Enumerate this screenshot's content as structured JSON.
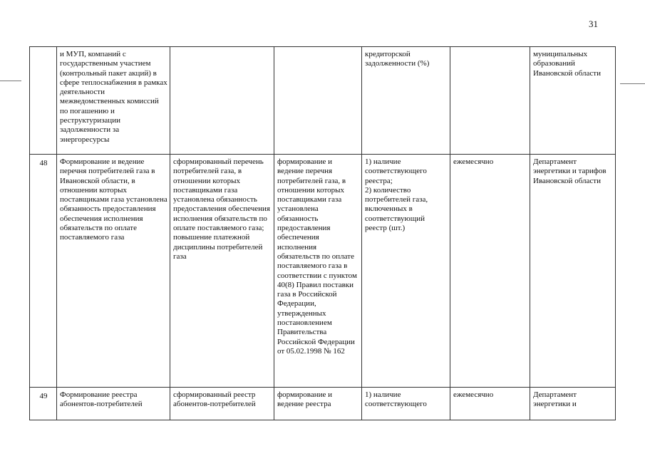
{
  "page_number": "31",
  "rows": [
    {
      "num": "",
      "name": "и МУП, компаний с государственным участием (контрольный пакет акций) в сфере теплоснабжения в рамках деятельности межведомственных комиссий по погашению и реструктуризации задолженности за энергоресурсы",
      "result": "",
      "action": "",
      "indicator": "кредиторской задолженности (%)",
      "period": "",
      "responsible": "муниципальных образований Ивановской области"
    },
    {
      "num": "48",
      "name": "Формирование и ведение перечня потребителей газа в Ивановской области, в отношении которых поставщиками газа установлена обязанность предоставления обеспечения исполнения обязательств по оплате поставляемого газа",
      "result": "сформированный перечень потребителей газа, в отношении которых поставщиками газа установлена обязанность предоставления обеспечения исполнения обязательств по оплате поставляемого газа;\nповышение платежной дисциплины потребителей газа",
      "action": "формирование и ведение перечня потребителей газа, в отношении которых поставщиками газа установлена обязанность предоставления обеспечения исполнения обязательств по оплате поставляемого газа в соответствии с пунктом 40(8) Правил поставки газа в Российской Федерации, утвержденных постановлением Правительства Российской Федерации от 05.02.1998 № 162",
      "indicator": "1) наличие соответствующего реестра;\n2) количество потребителей газа, включенных в соответствующий реестр (шт.)",
      "period": "ежемесячно",
      "responsible": "Департамент энергетики и тарифов Ивановской области"
    },
    {
      "num": "49",
      "name": "Формирование реестра абонентов-потребителей",
      "result": "сформированный реестр абонентов-потребителей",
      "action": "формирование и ведение реестра",
      "indicator": "1) наличие соответствующего",
      "period": "ежемесячно",
      "responsible": "Департамент энергетики и"
    }
  ]
}
